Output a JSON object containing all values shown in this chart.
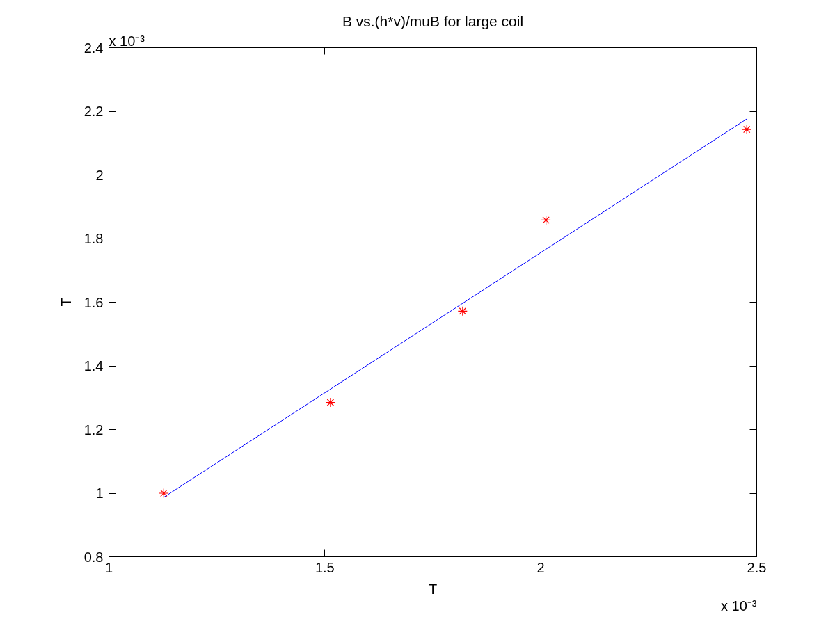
{
  "chart_data": {
    "type": "scatter",
    "title": "B vs.(h*v)/muB for large coil",
    "xlabel": "T",
    "ylabel": "T",
    "xlim": [
      1,
      2.5
    ],
    "ylim": [
      0.8,
      2.4
    ],
    "xticks": [
      1,
      1.5,
      2,
      2.5
    ],
    "yticks": [
      0.8,
      1,
      1.2,
      1.4,
      1.6,
      1.8,
      2,
      2.2,
      2.4
    ],
    "series": [
      {
        "color": "#ff0000",
        "marker": "cross",
        "x": [
          1.127,
          1.513,
          1.819,
          2.012,
          2.477
        ],
        "values": [
          1.0,
          1.285,
          1.572,
          1.858,
          2.143
        ]
      },
      {
        "type": "line",
        "color": "#0000ff",
        "x": [
          1.127,
          2.477
        ],
        "values": [
          0.987,
          2.176
        ]
      }
    ],
    "annotations": [
      "x 10⁻³",
      "x 10⁻³"
    ]
  }
}
